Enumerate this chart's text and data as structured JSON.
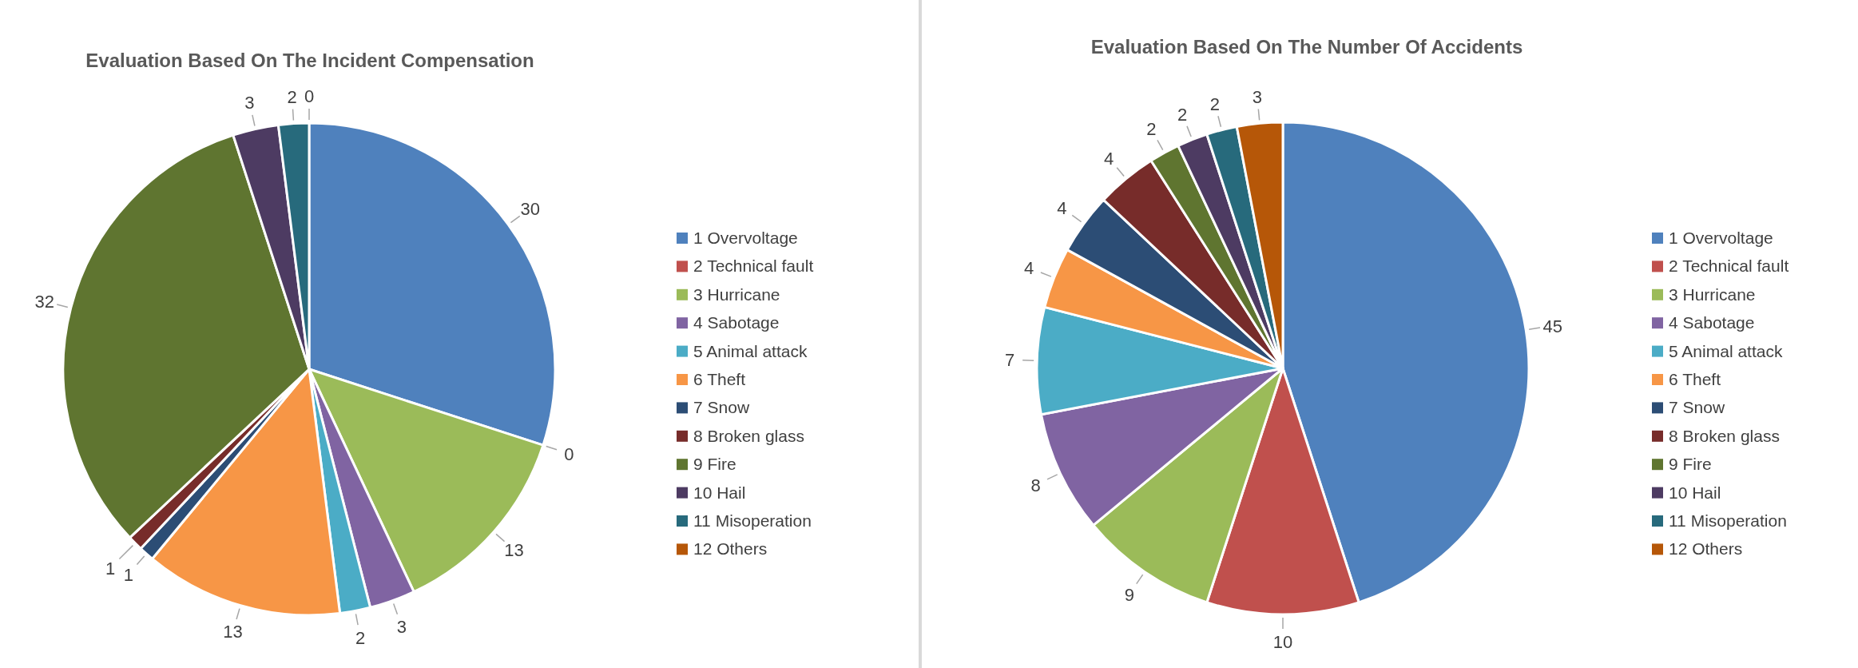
{
  "chart_data": [
    {
      "type": "pie",
      "title": "Evaluation Based On The Incident Compensation",
      "categories": [
        "1 Overvoltage",
        "2 Technical fault",
        "3 Hurricane",
        "4 Sabotage",
        "5 Animal attack",
        "6 Theft",
        "7 Snow",
        "8 Broken glass",
        "9 Fire",
        "10 Hail",
        "11 Misoperation",
        "12 Others"
      ],
      "values": [
        30,
        0,
        13,
        3,
        2,
        13,
        1,
        1,
        32,
        3,
        2,
        0
      ],
      "value_labels": [
        "30",
        "0",
        "13",
        "3",
        "2",
        "13",
        "1",
        "1",
        "32",
        "3",
        "2",
        "0"
      ],
      "colors": [
        "#4f81bd",
        "#c0504d",
        "#9bbb59",
        "#8064a2",
        "#4bacc6",
        "#f79646",
        "#2c4d75",
        "#772c2a",
        "#5f7530",
        "#4d3b62",
        "#276a7c",
        "#b65708"
      ],
      "legend": "right"
    },
    {
      "type": "pie",
      "title": "Evaluation Based On The Number Of Accidents",
      "categories": [
        "1 Overvoltage",
        "2 Technical fault",
        "3 Hurricane",
        "4 Sabotage",
        "5 Animal attack",
        "6 Theft",
        "7 Snow",
        "8 Broken glass",
        "9 Fire",
        "10 Hail",
        "11 Misoperation",
        "12 Others"
      ],
      "values": [
        45,
        10,
        9,
        8,
        7,
        4,
        4,
        4,
        2,
        2,
        2,
        3
      ],
      "colors": [
        "#4f81bd",
        "#c0504d",
        "#9bbb59",
        "#8064a2",
        "#4bacc6",
        "#f79646",
        "#2c4d75",
        "#772c2a",
        "#5f7530",
        "#4d3b62",
        "#276a7c",
        "#b65708"
      ],
      "data_labels": true,
      "legend": "right"
    }
  ]
}
